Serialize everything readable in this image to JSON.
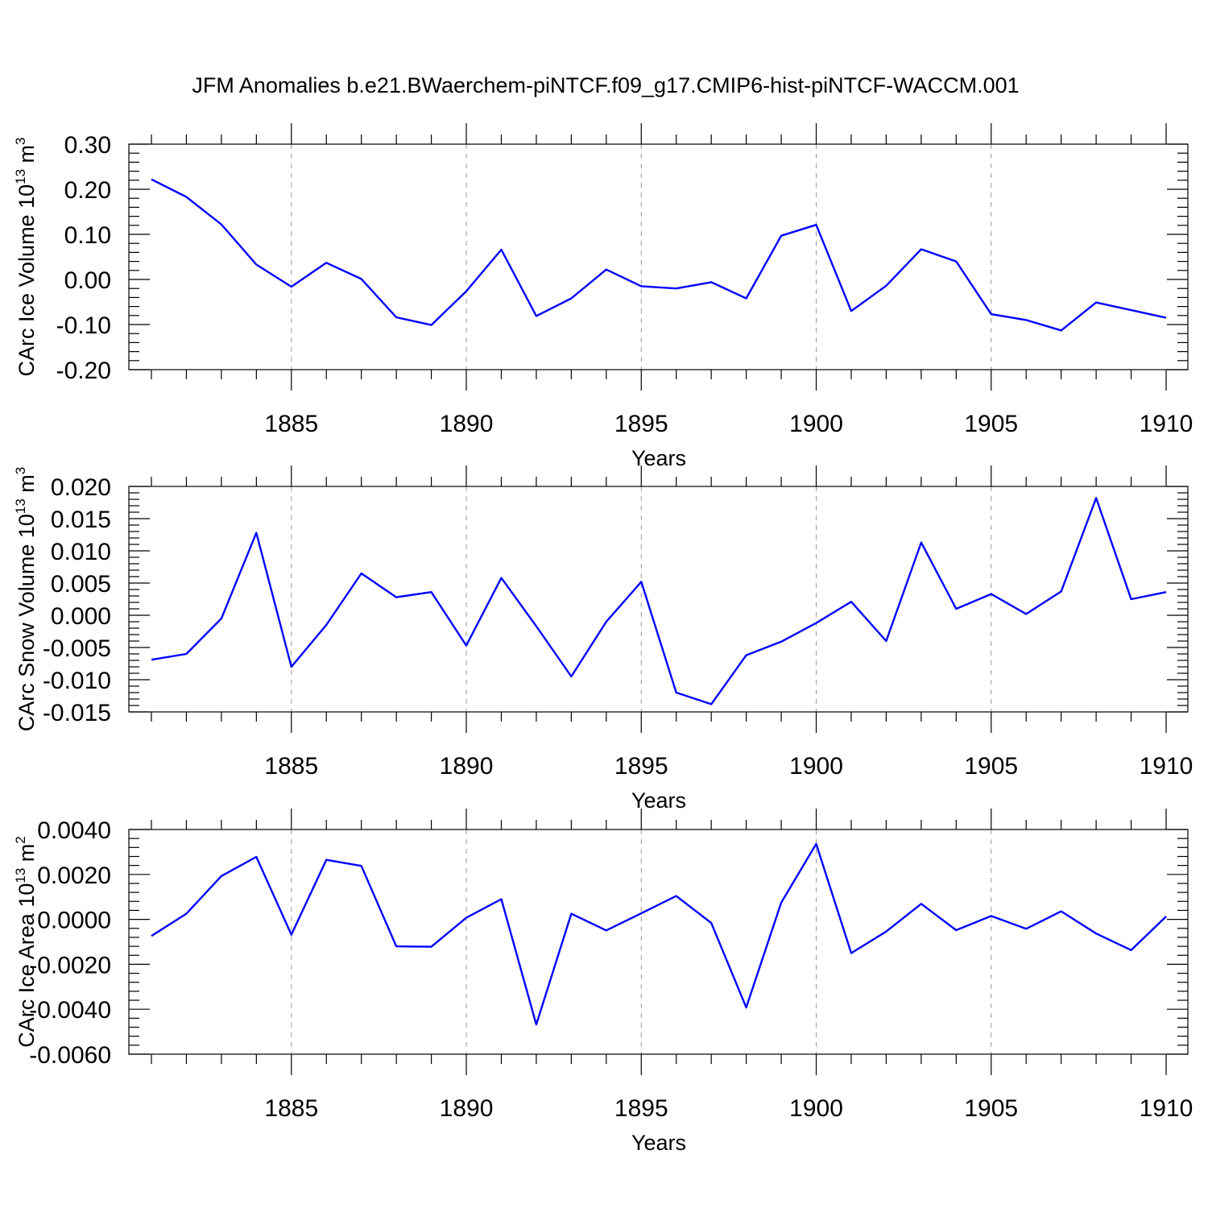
{
  "figure": {
    "title": "JFM Anomalies b.e21.BWaerchem-piNTCF.f09_g17.CMIP6-hist-piNTCF-WACCM.001"
  },
  "chart_data": [
    {
      "type": "line",
      "title": "",
      "xlabel": "Years",
      "ylabel": "CArc Ice Volume 10",
      "ylabel_sup1": "13",
      "ylabel_unit": " m",
      "ylabel_sup2": "3",
      "xlim": [
        1881,
        1910
      ],
      "ylim": [
        -0.2,
        0.3
      ],
      "xticks": [
        1885,
        1890,
        1895,
        1900,
        1905,
        1910
      ],
      "xtick_labels": [
        "1885",
        "1890",
        "1895",
        "1900",
        "1905",
        "1910"
      ],
      "yticks": [
        -0.2,
        -0.1,
        0.0,
        0.1,
        0.2,
        0.3
      ],
      "ytick_labels": [
        "-0.20",
        "-0.10",
        "0.00",
        "0.10",
        "0.20",
        "0.30"
      ],
      "grid": "vertical dashed at labeled x ticks",
      "color": "#0000ff",
      "x": [
        1881,
        1882,
        1883,
        1884,
        1885,
        1886,
        1887,
        1888,
        1889,
        1890,
        1891,
        1892,
        1893,
        1894,
        1895,
        1896,
        1897,
        1898,
        1899,
        1900,
        1901,
        1902,
        1903,
        1904,
        1905,
        1906,
        1907,
        1908,
        1909,
        1910
      ],
      "y": [
        0.222,
        0.183,
        0.122,
        0.033,
        -0.016,
        0.037,
        0.001,
        -0.084,
        -0.101,
        -0.026,
        0.066,
        -0.081,
        -0.042,
        0.022,
        -0.015,
        -0.02,
        -0.006,
        -0.042,
        0.097,
        0.121,
        -0.07,
        -0.014,
        0.067,
        0.04,
        -0.077,
        -0.09,
        -0.113,
        -0.051,
        -0.068,
        -0.085
      ]
    },
    {
      "type": "line",
      "title": "",
      "xlabel": "Years",
      "ylabel": "CArc Snow Volume 10",
      "ylabel_sup1": "13",
      "ylabel_unit": " m",
      "ylabel_sup2": "3",
      "xlim": [
        1881,
        1910
      ],
      "ylim": [
        -0.015,
        0.02
      ],
      "xticks": [
        1885,
        1890,
        1895,
        1900,
        1905,
        1910
      ],
      "xtick_labels": [
        "1885",
        "1890",
        "1895",
        "1900",
        "1905",
        "1910"
      ],
      "yticks": [
        -0.015,
        -0.01,
        -0.005,
        0.0,
        0.005,
        0.01,
        0.015,
        0.02
      ],
      "ytick_labels": [
        "-0.015",
        "-0.010",
        "-0.005",
        "0.000",
        "0.005",
        "0.010",
        "0.015",
        "0.020"
      ],
      "grid": "vertical dashed at labeled x ticks",
      "color": "#0000ff",
      "x": [
        1881,
        1882,
        1883,
        1884,
        1885,
        1886,
        1887,
        1888,
        1889,
        1890,
        1891,
        1892,
        1893,
        1894,
        1895,
        1896,
        1897,
        1898,
        1899,
        1900,
        1901,
        1902,
        1903,
        1904,
        1905,
        1906,
        1907,
        1908,
        1909,
        1910
      ],
      "y": [
        -0.0069,
        -0.006,
        -0.0005,
        0.0128,
        -0.008,
        -0.0015,
        0.0065,
        0.0028,
        0.0036,
        -0.0047,
        0.0058,
        -0.0017,
        -0.0095,
        -0.001,
        0.0052,
        -0.012,
        -0.0138,
        -0.0062,
        -0.0041,
        -0.0012,
        0.0021,
        -0.004,
        0.0113,
        0.001,
        0.0033,
        0.0002,
        0.0037,
        0.0182,
        0.0025,
        0.0036
      ]
    },
    {
      "type": "line",
      "title": "",
      "xlabel": "Years",
      "ylabel": "CArc Ice Area 10",
      "ylabel_sup1": "13",
      "ylabel_unit": " m",
      "ylabel_sup2": "2",
      "xlim": [
        1881,
        1910
      ],
      "ylim": [
        -0.006,
        0.004
      ],
      "xticks": [
        1885,
        1890,
        1895,
        1900,
        1905,
        1910
      ],
      "xtick_labels": [
        "1885",
        "1890",
        "1895",
        "1900",
        "1905",
        "1910"
      ],
      "yticks": [
        -0.006,
        -0.004,
        -0.002,
        0.0,
        0.002,
        0.004
      ],
      "ytick_labels": [
        "-0.0060",
        "-0.0040",
        "-0.0020",
        "0.0000",
        "0.0020",
        "0.0040"
      ],
      "grid": "vertical dashed at labeled x ticks",
      "color": "#0000ff",
      "x": [
        1881,
        1882,
        1883,
        1884,
        1885,
        1886,
        1887,
        1888,
        1889,
        1890,
        1891,
        1892,
        1893,
        1894,
        1895,
        1896,
        1897,
        1898,
        1899,
        1900,
        1901,
        1902,
        1903,
        1904,
        1905,
        1906,
        1907,
        1908,
        1909,
        1910
      ],
      "y": [
        -0.00074,
        0.00025,
        0.00193,
        0.00278,
        -0.00068,
        0.00265,
        0.00238,
        -0.0012,
        -0.00122,
        7e-05,
        0.0009,
        -0.00468,
        0.00025,
        -0.00049,
        0.00027,
        0.00104,
        -0.00016,
        -0.00392,
        0.00075,
        0.00336,
        -0.0015,
        -0.00054,
        0.00069,
        -0.00048,
        0.00015,
        -0.00042,
        0.00036,
        -0.00063,
        -0.00137,
        0.00013
      ]
    }
  ]
}
